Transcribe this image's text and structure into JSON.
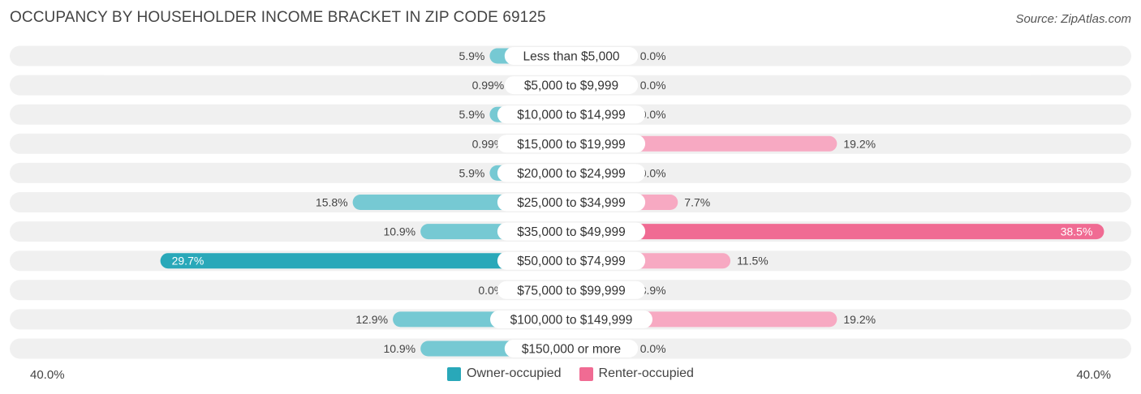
{
  "header": {
    "title": "OCCUPANCY BY HOUSEHOLDER INCOME BRACKET IN ZIP CODE 69125",
    "source": "Source: ZipAtlas.com"
  },
  "colors": {
    "owner_dark": "#29a8b9",
    "owner_light": "#76c9d3",
    "renter_dark": "#f06b93",
    "renter_light": "#f7a9c2",
    "row_background": "#f0f0f0"
  },
  "chart_data": {
    "type": "bar",
    "orientation": "horizontal-diverging",
    "categories": [
      "Less than $5,000",
      "$5,000 to $9,999",
      "$10,000 to $14,999",
      "$15,000 to $19,999",
      "$20,000 to $24,999",
      "$25,000 to $34,999",
      "$35,000 to $49,999",
      "$50,000 to $74,999",
      "$75,000 to $99,999",
      "$100,000 to $149,999",
      "$150,000 or more"
    ],
    "series": [
      {
        "name": "Owner-occupied",
        "values": [
          5.9,
          0.99,
          5.9,
          0.99,
          5.9,
          15.8,
          10.9,
          29.7,
          0.0,
          12.9,
          10.9
        ],
        "labels": [
          "5.9%",
          "0.99%",
          "5.9%",
          "0.99%",
          "5.9%",
          "15.8%",
          "10.9%",
          "29.7%",
          "0.0%",
          "12.9%",
          "10.9%"
        ]
      },
      {
        "name": "Renter-occupied",
        "values": [
          0.0,
          0.0,
          0.0,
          19.2,
          0.0,
          7.7,
          38.5,
          11.5,
          3.9,
          19.2,
          0.0
        ],
        "labels": [
          "0.0%",
          "0.0%",
          "0.0%",
          "19.2%",
          "0.0%",
          "7.7%",
          "38.5%",
          "11.5%",
          "3.9%",
          "19.2%",
          "0.0%"
        ]
      }
    ],
    "xlim": [
      -40,
      40
    ],
    "axis_left_label": "40.0%",
    "axis_right_label": "40.0%",
    "legend_position": "bottom-center"
  }
}
